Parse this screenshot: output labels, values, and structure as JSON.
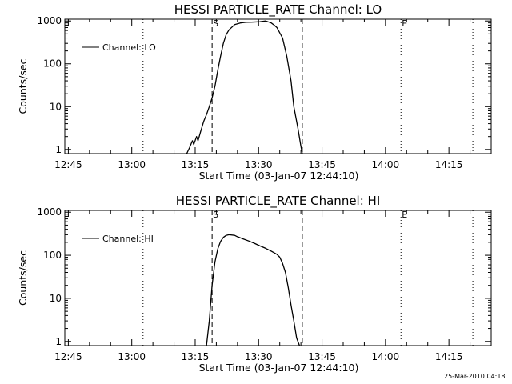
{
  "footer_stamp": "25-Mar-2010 04:18",
  "chart_data": [
    {
      "type": "line",
      "title": "HESSI PARTICLE_RATE Channel: LO",
      "xlabel": "Start Time (03-Jan-07 12:44:10)",
      "ylabel": "Counts/sec",
      "ylog": true,
      "ylim": [
        0.8,
        1100
      ],
      "xlim": [
        "12:44:10",
        "14:25:00"
      ],
      "yticks": [
        "1",
        "10",
        "100",
        "1000"
      ],
      "xticks": [
        "12:45",
        "13:00",
        "13:15",
        "13:30",
        "13:45",
        "14:00",
        "14:15"
      ],
      "legend": {
        "entry": "Channel: LO",
        "position": "top-left"
      },
      "markers": [
        {
          "label": "S",
          "time": "13:19:00",
          "style": "dashed"
        },
        {
          "label": "E",
          "time": "14:03:40",
          "style": "dotted"
        }
      ],
      "extra_lines": [
        {
          "time": "13:02:40",
          "style": "dotted"
        },
        {
          "time": "13:40:20",
          "style": "dashed"
        },
        {
          "time": "14:20:40",
          "style": "dotted"
        }
      ],
      "series": [
        {
          "x": [
            "13:13:00",
            "13:13:40",
            "13:14:20",
            "13:14:40",
            "13:15:20",
            "13:15:40",
            "13:16:20",
            "13:17:00",
            "13:17:40",
            "13:18:20",
            "13:19:00",
            "13:19:40",
            "13:20:20",
            "13:21:00",
            "13:21:40",
            "13:22:20",
            "13:23:00",
            "13:24:20",
            "13:25:40",
            "13:27:00",
            "13:28:20",
            "13:30:20",
            "13:31:40",
            "13:33:00",
            "13:33:40",
            "13:34:20",
            "13:35:40",
            "13:36:40",
            "13:37:40",
            "13:38:20",
            "13:39:20",
            "13:40:00",
            "13:40:20"
          ],
          "y": [
            0.8,
            1.1,
            1.6,
            1.3,
            2.0,
            1.6,
            2.7,
            4.5,
            6.5,
            10,
            16,
            30,
            70,
            150,
            300,
            480,
            620,
            820,
            900,
            930,
            940,
            960,
            1000,
            900,
            800,
            700,
            400,
            150,
            40,
            10,
            3,
            1.2,
            0.8
          ]
        }
      ]
    },
    {
      "type": "line",
      "title": "HESSI PARTICLE_RATE Channel: HI",
      "xlabel": "Start Time (03-Jan-07 12:44:10)",
      "ylabel": "Counts/sec",
      "ylog": true,
      "ylim": [
        0.8,
        1100
      ],
      "xlim": [
        "12:44:10",
        "14:25:00"
      ],
      "yticks": [
        "1",
        "10",
        "100",
        "1000"
      ],
      "xticks": [
        "12:45",
        "13:00",
        "13:15",
        "13:30",
        "13:45",
        "14:00",
        "14:15"
      ],
      "legend": {
        "entry": "Channel: HI",
        "position": "top-left"
      },
      "markers": [
        {
          "label": "S",
          "time": "13:19:00",
          "style": "dashed"
        },
        {
          "label": "E",
          "time": "14:03:40",
          "style": "dotted"
        }
      ],
      "extra_lines": [
        {
          "time": "13:02:40",
          "style": "dotted"
        },
        {
          "time": "13:40:20",
          "style": "dashed"
        },
        {
          "time": "14:20:40",
          "style": "dotted"
        }
      ],
      "series": [
        {
          "x": [
            "13:17:40",
            "13:18:20",
            "13:19:00",
            "13:19:40",
            "13:20:20",
            "13:21:00",
            "13:21:40",
            "13:22:20",
            "13:23:00",
            "13:24:20",
            "13:25:00",
            "13:26:20",
            "13:27:40",
            "13:29:00",
            "13:30:20",
            "13:31:40",
            "13:33:00",
            "13:34:20",
            "13:35:00",
            "13:35:40",
            "13:36:20",
            "13:37:00",
            "13:37:40",
            "13:38:20",
            "13:39:00",
            "13:39:40"
          ],
          "y": [
            0.8,
            3,
            20,
            70,
            140,
            210,
            260,
            290,
            300,
            290,
            270,
            240,
            215,
            190,
            165,
            145,
            125,
            105,
            90,
            65,
            40,
            18,
            7,
            3,
            1.2,
            0.8
          ]
        }
      ]
    }
  ]
}
